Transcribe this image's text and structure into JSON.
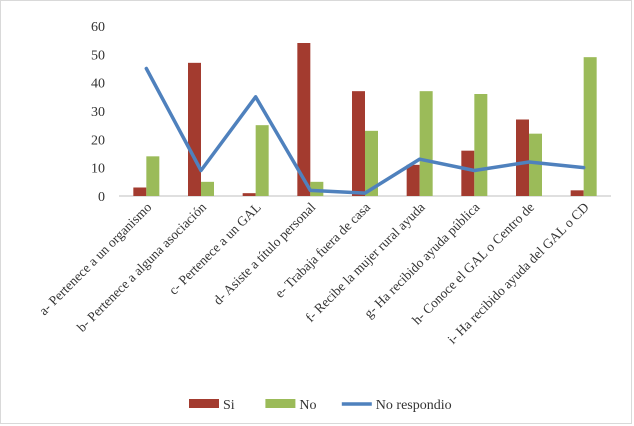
{
  "chart_data": {
    "type": "bar",
    "title": "",
    "xlabel": "",
    "ylabel": "",
    "ylim": [
      0,
      60
    ],
    "yticks": [
      0,
      10,
      20,
      30,
      40,
      50,
      60
    ],
    "grid": false,
    "legend_position": "bottom",
    "categories": [
      "a- Pertenece a un organismo",
      "b- Pertenece a alguna asociación",
      "c- Pertenece a un GAL",
      "d- Asiste a título personal",
      "e- Trabaja fuera de casa",
      "f- Recibe la mujer rural ayuda",
      "g- Ha recibido ayuda pública",
      "h- Conoce el GAL o Centro de",
      "i- Ha recibido ayuda del GAL o CD"
    ],
    "series": [
      {
        "name": "Si",
        "type": "bar",
        "color": "#a33b2f",
        "values": [
          3,
          47,
          1,
          54,
          37,
          11,
          16,
          27,
          2
        ]
      },
      {
        "name": "No",
        "type": "bar",
        "color": "#9bbb59",
        "values": [
          14,
          5,
          25,
          5,
          23,
          37,
          36,
          22,
          49
        ]
      },
      {
        "name": "No respondio",
        "type": "line",
        "color": "#4f81bd",
        "values": [
          45,
          9,
          35,
          2,
          1,
          13,
          9,
          12,
          10
        ]
      }
    ]
  }
}
